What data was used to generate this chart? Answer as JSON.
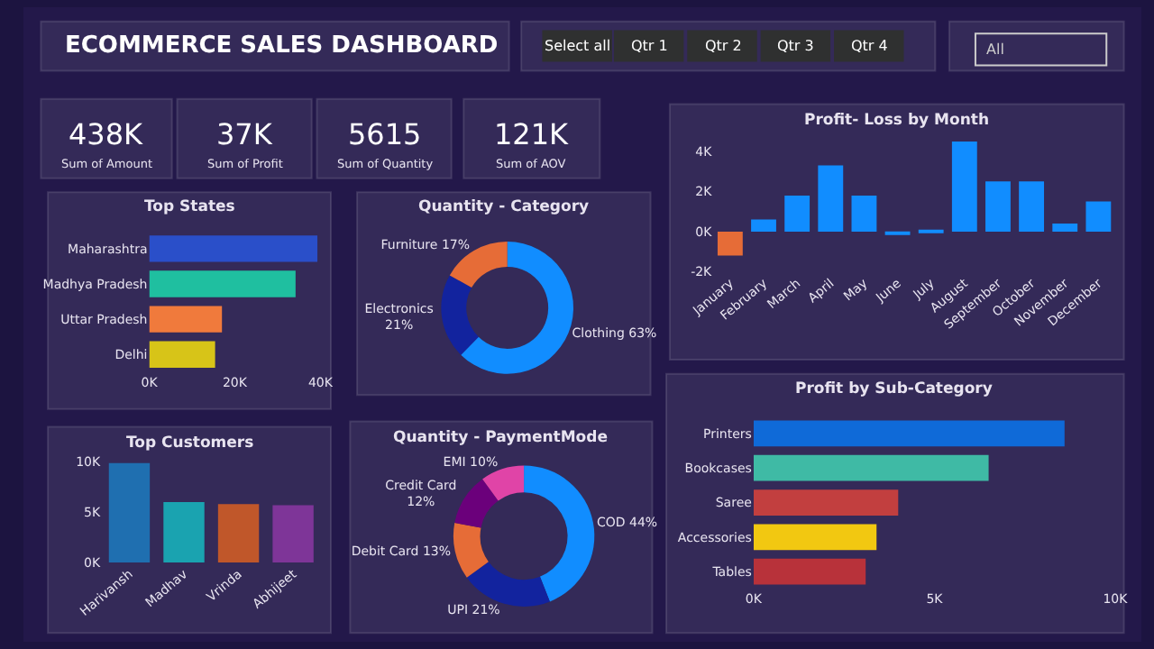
{
  "chart_data": [
    {
      "type": "other",
      "title": "ECOMMERCE SALES DASHBOARD",
      "annotations": [
        "Select all",
        "Qtr 1",
        "Qtr 2",
        "Qtr 3",
        "Qtr 4",
        "All"
      ]
    },
    {
      "type": "other",
      "annotations": [
        "438K",
        "Sum of Amount",
        "37K",
        "Sum of Profit",
        "5615",
        "Sum of Quantity",
        "121K",
        "Sum of AOV"
      ]
    },
    {
      "type": "bar",
      "title": "Top States",
      "orientation": "horizontal",
      "categories": [
        "Maharashtra",
        "Madhya Pradesh",
        "Uttar Pradesh",
        "Delhi"
      ],
      "values": [
        39300,
        34200,
        17000,
        15400
      ],
      "colors": [
        "#2a4fc9",
        "#1fbfa0",
        "#f07a3c",
        "#d7c418"
      ],
      "xlim": [
        0,
        40000
      ],
      "xticks": [
        {
          "value": 0,
          "label": "0K"
        },
        {
          "value": 20000,
          "label": "20K"
        },
        {
          "value": 40000,
          "label": "40K"
        }
      ]
    },
    {
      "type": "donut",
      "title": "Quantity - Category",
      "categories": [
        "Clothing",
        "Electronics",
        "Furniture"
      ],
      "values": [
        63,
        21,
        17
      ],
      "value_labels": [
        "63%",
        "21%",
        "17%"
      ],
      "colors": [
        "#118dff",
        "#12239e",
        "#e66c37"
      ]
    },
    {
      "type": "bar",
      "title": "Profit- Loss by Month",
      "categories": [
        "January",
        "February",
        "March",
        "April",
        "May",
        "June",
        "July",
        "August",
        "September",
        "October",
        "November",
        "December"
      ],
      "values": [
        -1200,
        600,
        1800,
        3300,
        1800,
        -100,
        100,
        4500,
        2500,
        2500,
        400,
        1500
      ],
      "colors": [
        "#e66c37",
        "#118dff",
        "#118dff",
        "#118dff",
        "#118dff",
        "#118dff",
        "#118dff",
        "#118dff",
        "#118dff",
        "#118dff",
        "#118dff",
        "#118dff"
      ],
      "ylim": [
        -2000,
        4600
      ],
      "yticks": [
        {
          "value": -2000,
          "label": "-2K"
        },
        {
          "value": 0,
          "label": "0K"
        },
        {
          "value": 2000,
          "label": "2K"
        },
        {
          "value": 4000,
          "label": "4K"
        }
      ]
    },
    {
      "type": "bar",
      "title": "Top Customers",
      "categories": [
        "Harivansh",
        "Madhav",
        "Vrinda",
        "Abhijeet"
      ],
      "values": [
        9900,
        6000,
        5800,
        5700
      ],
      "colors": [
        "#1f6fb0",
        "#1aa3b0",
        "#c0572a",
        "#7e3598"
      ],
      "ylim": [
        0,
        10000
      ],
      "yticks": [
        {
          "value": 0,
          "label": "0K"
        },
        {
          "value": 5000,
          "label": "5K"
        },
        {
          "value": 10000,
          "label": "10K"
        }
      ]
    },
    {
      "type": "donut",
      "title": "Quantity - PaymentMode",
      "categories": [
        "COD",
        "UPI",
        "Debit Card",
        "Credit Card",
        "EMI"
      ],
      "values": [
        44,
        21,
        13,
        12,
        10
      ],
      "value_labels": [
        "44%",
        "21%",
        "13%",
        "12%",
        "10%"
      ],
      "colors": [
        "#118dff",
        "#12239e",
        "#e66c37",
        "#6b007b",
        "#e044a7"
      ]
    },
    {
      "type": "bar",
      "title": "Profit by Sub-Category",
      "orientation": "horizontal",
      "categories": [
        "Printers",
        "Bookcases",
        "Saree",
        "Accessories",
        "Tables"
      ],
      "values": [
        8600,
        6500,
        4000,
        3400,
        3100
      ],
      "colors": [
        "#0f6ad8",
        "#3fbaa5",
        "#c23f3f",
        "#f2c811",
        "#b8323a"
      ],
      "xlim": [
        0,
        10000
      ],
      "xticks": [
        {
          "value": 0,
          "label": "0K"
        },
        {
          "value": 5000,
          "label": "5K"
        },
        {
          "value": 10000,
          "label": "10K"
        }
      ]
    }
  ]
}
